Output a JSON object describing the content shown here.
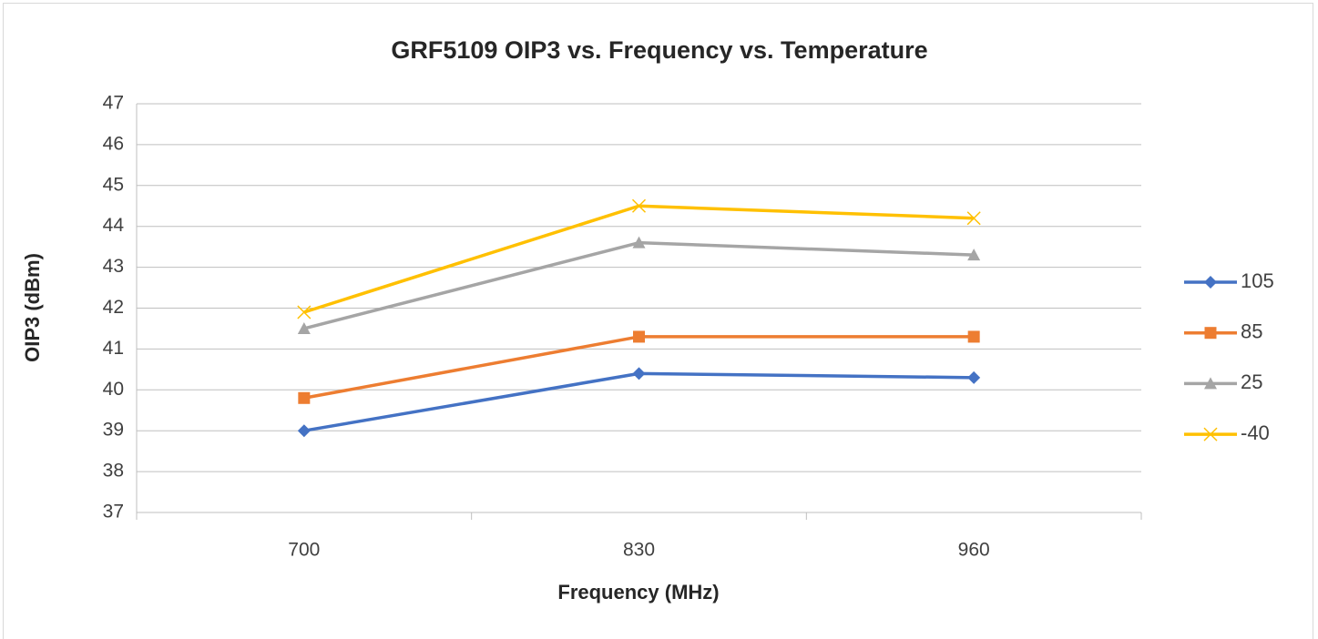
{
  "chart_data": {
    "type": "line",
    "title": "GRF5109 OIP3 vs. Frequency vs. Temperature",
    "x_label": "Frequency (MHz)",
    "y_label": "OIP3 (dBm)",
    "categories": [
      700,
      830,
      960
    ],
    "ylim": [
      37,
      47
    ],
    "yticks": [
      37,
      38,
      39,
      40,
      41,
      42,
      43,
      44,
      45,
      46,
      47
    ],
    "grid": true,
    "legend": "right",
    "series": [
      {
        "name": "105",
        "color": "#4472c4",
        "marker": "diamond",
        "values": [
          39.0,
          40.4,
          40.3
        ]
      },
      {
        "name": "85",
        "color": "#ed7d31",
        "marker": "square",
        "values": [
          39.8,
          41.3,
          41.3
        ]
      },
      {
        "name": "25",
        "color": "#a5a5a5",
        "marker": "triangle",
        "values": [
          41.5,
          43.6,
          43.3
        ]
      },
      {
        "name": "-40",
        "color": "#ffc000",
        "marker": "x",
        "values": [
          41.9,
          44.5,
          44.2
        ]
      }
    ]
  }
}
